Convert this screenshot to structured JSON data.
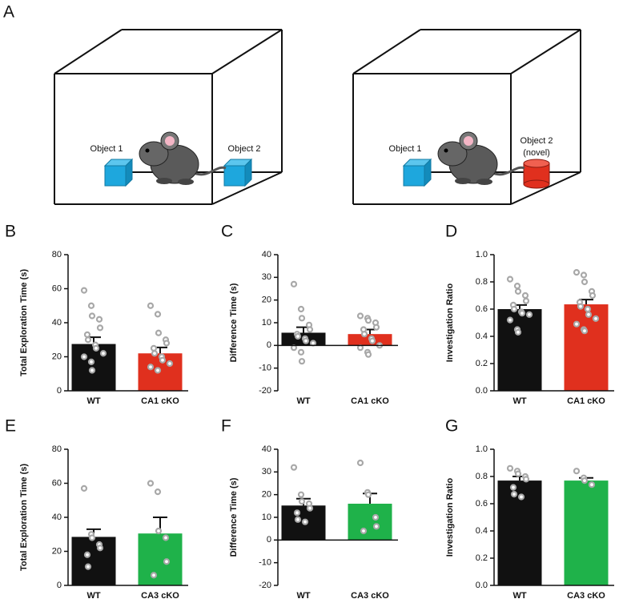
{
  "panel_labels": [
    "A",
    "B",
    "C",
    "D",
    "E",
    "F",
    "G"
  ],
  "diagram": {
    "labels": [
      "Object 1",
      "Object 2",
      "Object 1",
      "Object 2",
      "(novel)"
    ]
  },
  "chart_data": [
    {
      "type": "bar",
      "ylabel": "Total Exploration Time (s)",
      "categories": [
        "WT",
        "CA1 cKO"
      ],
      "values": [
        27.5,
        22
      ],
      "errors": [
        4,
        3.5
      ],
      "colors": [
        "#111111",
        "#e0301e"
      ],
      "points": [
        [
          59,
          50,
          44,
          42,
          37,
          33,
          30,
          27,
          25,
          22,
          20,
          17,
          12
        ],
        [
          50,
          45,
          34,
          30,
          28,
          25,
          22,
          20,
          18,
          16,
          14,
          12
        ]
      ],
      "ylim": [
        0,
        80
      ],
      "yticks": [
        0,
        20,
        40,
        60,
        80
      ]
    },
    {
      "type": "bar",
      "ylabel": "Difference Time (s)",
      "categories": [
        "WT",
        "CA1 cKO"
      ],
      "values": [
        5.6,
        5
      ],
      "errors": [
        2.4,
        2
      ],
      "colors": [
        "#111111",
        "#e0301e"
      ],
      "points": [
        [
          27,
          16,
          12,
          9,
          7,
          5,
          4,
          3,
          2,
          1,
          -1,
          -3,
          -7
        ],
        [
          13,
          12,
          11,
          10,
          8,
          7,
          5,
          3,
          2,
          0,
          -1,
          -3,
          -4
        ]
      ],
      "ylim": [
        -20,
        40
      ],
      "yticks": [
        -20,
        -10,
        0,
        10,
        20,
        30,
        40
      ]
    },
    {
      "type": "bar",
      "ylabel": "Investigation Ratio",
      "categories": [
        "WT",
        "CA1 cKO"
      ],
      "values": [
        0.6,
        0.635
      ],
      "errors": [
        0.03,
        0.035
      ],
      "colors": [
        "#111111",
        "#e0301e"
      ],
      "points": [
        [
          0.82,
          0.77,
          0.73,
          0.7,
          0.66,
          0.63,
          0.6,
          0.58,
          0.57,
          0.56,
          0.52,
          0.45,
          0.43
        ],
        [
          0.87,
          0.85,
          0.8,
          0.73,
          0.7,
          0.65,
          0.62,
          0.6,
          0.56,
          0.53,
          0.49,
          0.45,
          0.44
        ]
      ],
      "ylim": [
        0,
        1
      ],
      "yticks": [
        {
          "value": 0,
          "label": "0.0"
        },
        {
          "value": 0.2,
          "label": "0.2"
        },
        {
          "value": 0.4,
          "label": "0.4"
        },
        {
          "value": 0.6,
          "label": "0.6"
        },
        {
          "value": 0.8,
          "label": "0.8"
        },
        {
          "value": 1,
          "label": "1.0"
        }
      ]
    },
    {
      "type": "bar",
      "ylabel": "Total Exploration Time (s)",
      "categories": [
        "WT",
        "CA3 cKO"
      ],
      "values": [
        28.5,
        30.5
      ],
      "errors": [
        4.5,
        9.5
      ],
      "colors": [
        "#111111",
        "#1fb24a"
      ],
      "points": [
        [
          57,
          30,
          28,
          24,
          22,
          18,
          11
        ],
        [
          60,
          55,
          32,
          28,
          14,
          6
        ]
      ],
      "ylim": [
        0,
        80
      ],
      "yticks": [
        0,
        20,
        40,
        60,
        80
      ]
    },
    {
      "type": "bar",
      "ylabel": "Difference Time (s)",
      "categories": [
        "WT",
        "CA3 cKO"
      ],
      "values": [
        15.2,
        16
      ],
      "errors": [
        3,
        4.5
      ],
      "colors": [
        "#111111",
        "#1fb24a"
      ],
      "points": [
        [
          32,
          20,
          17,
          16,
          14,
          12,
          9,
          8
        ],
        [
          34,
          21,
          20,
          10,
          6,
          4
        ]
      ],
      "ylim": [
        -20,
        40
      ],
      "yticks": [
        -20,
        -10,
        0,
        10,
        20,
        30,
        40
      ]
    },
    {
      "type": "bar",
      "ylabel": "Investigation Ratio",
      "categories": [
        "WT",
        "CA3 cKO"
      ],
      "values": [
        0.77,
        0.77
      ],
      "errors": [
        0.03,
        0.02
      ],
      "colors": [
        "#111111",
        "#1fb24a"
      ],
      "points": [
        [
          0.86,
          0.84,
          0.82,
          0.8,
          0.78,
          0.72,
          0.67,
          0.65
        ],
        [
          0.84,
          0.79,
          0.77,
          0.74
        ]
      ],
      "ylim": [
        0,
        1
      ],
      "yticks": [
        {
          "value": 0,
          "label": "0.0"
        },
        {
          "value": 0.2,
          "label": "0.2"
        },
        {
          "value": 0.4,
          "label": "0.4"
        },
        {
          "value": 0.6,
          "label": "0.6"
        },
        {
          "value": 0.8,
          "label": "0.8"
        },
        {
          "value": 1,
          "label": "1.0"
        }
      ]
    }
  ]
}
